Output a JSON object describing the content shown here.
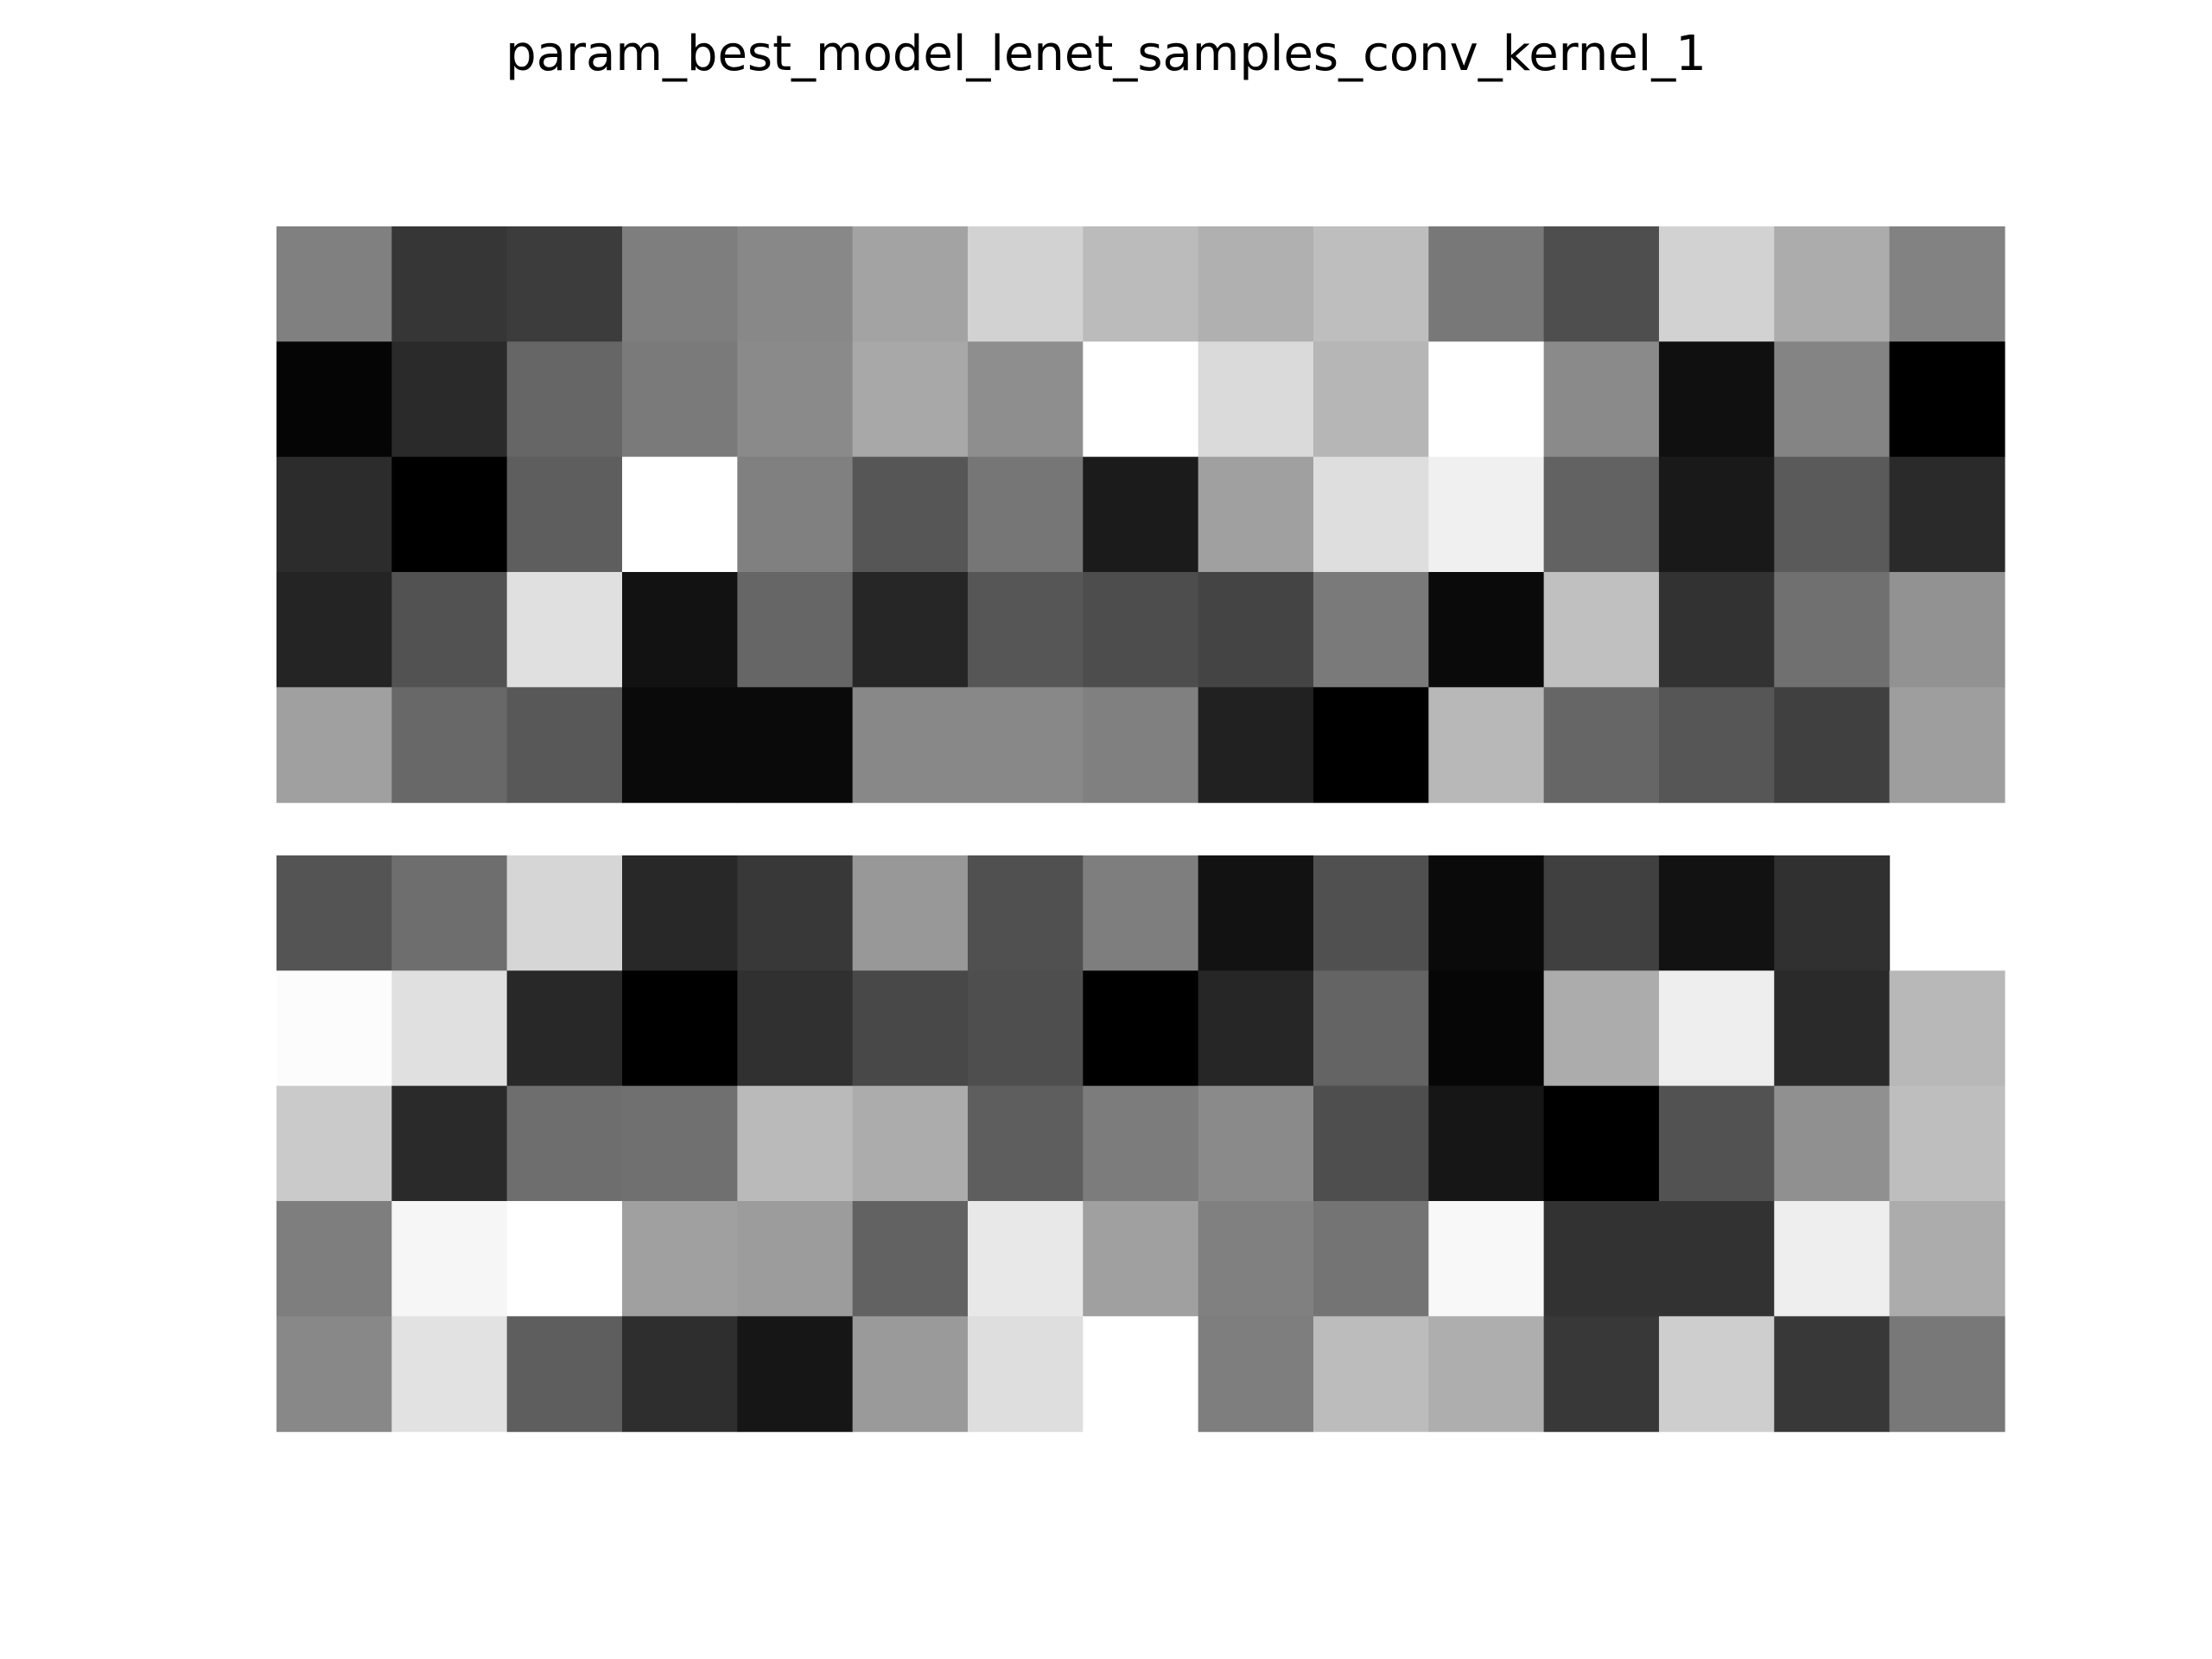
{
  "chart_data": {
    "type": "heatmap",
    "title": "param_best_model_lenet_samples_conv_kernel_1",
    "colormap": "gray",
    "value_scale": "grayscale intensity, 0 = black, 255 = white",
    "axes_visible": false,
    "panels": [
      {
        "rows": [
          [
            128,
            54,
            60,
            126,
            136,
            163,
            210,
            187,
            176,
            190,
            120,
            78,
            210,
            172,
            130
          ],
          [
            5,
            42,
            102,
            122,
            138,
            168,
            142,
            255,
            218,
            182,
            255,
            138,
            16,
            132,
            0
          ],
          [
            44,
            0,
            94,
            255,
            128,
            86,
            118,
            27,
            160,
            222,
            240,
            98,
            25,
            90,
            42
          ],
          [
            36,
            82,
            224,
            18,
            102,
            38,
            86,
            77,
            68,
            122,
            10,
            192,
            50,
            112,
            146
          ],
          [
            160,
            104,
            88,
            10,
            10,
            136,
            136,
            128,
            33,
            0,
            184,
            102,
            86,
            64,
            158
          ]
        ]
      },
      {
        "rows": [
          [
            84,
            110,
            214,
            40,
            56,
            152,
            80,
            126,
            18,
            80,
            10,
            64,
            18,
            48,
            null
          ],
          [
            252,
            224,
            40,
            0,
            48,
            72,
            78,
            0,
            38,
            100,
            6,
            172,
            238,
            42,
            184
          ],
          [
            202,
            42,
            110,
            112,
            186,
            172,
            94,
            124,
            138,
            78,
            22,
            0,
            82,
            144,
            190
          ],
          [
            126,
            246,
            255,
            160,
            156,
            98,
            232,
            160,
            128,
            116,
            248,
            50,
            50,
            238,
            172
          ],
          [
            136,
            226,
            94,
            46,
            22,
            154,
            222,
            255,
            126,
            188,
            174,
            56,
            206,
            56,
            120
          ]
        ]
      }
    ]
  }
}
